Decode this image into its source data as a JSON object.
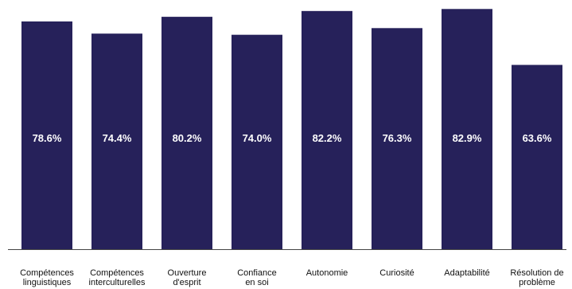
{
  "chart_data": {
    "type": "bar",
    "categories": [
      [
        "Compétences",
        "linguistiques"
      ],
      [
        "Compétences",
        "interculturelles"
      ],
      [
        "Ouverture",
        "d'esprit"
      ],
      [
        "Confiance",
        "en soi"
      ],
      [
        "Autonomie"
      ],
      [
        "Curiosité"
      ],
      [
        "Adaptabilité"
      ],
      [
        "Résolution de",
        "problème"
      ]
    ],
    "values": [
      78.6,
      74.4,
      80.2,
      74.0,
      82.2,
      76.3,
      82.9,
      63.6
    ],
    "value_labels": [
      "78.6%",
      "74.4%",
      "80.2%",
      "74.0%",
      "82.2%",
      "76.3%",
      "82.9%",
      "63.6%"
    ],
    "title": "",
    "xlabel": "",
    "ylabel": "",
    "ylim": [
      0,
      86
    ],
    "grid": false,
    "legend": "none",
    "bar_color": "#26215a",
    "label_color": "#ffffff",
    "axis_color": "#444444"
  }
}
